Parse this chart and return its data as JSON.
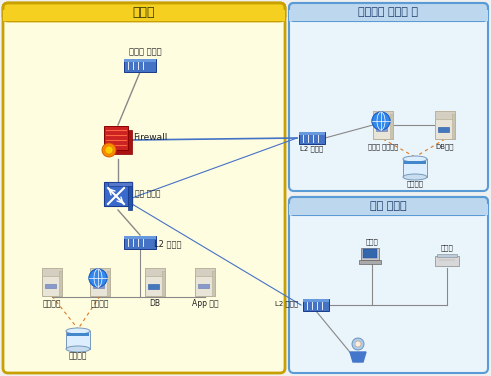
{
  "title_intranet": "내부망",
  "title_internet": "외부인용 인터넷 망",
  "title_internal": "내부 업무용",
  "labels": {
    "metro_switch": "메트로 스위치",
    "firewall": "Firewall",
    "border_switch": "벽로 스위치",
    "l2_switch": "L2 스위치",
    "archive": "아카이브",
    "content_mgmt": "유물관리",
    "db": "DB",
    "app_server": "App 서버",
    "storage_intranet": "스토리지",
    "l2_switch_internet": "L2 스위치",
    "public_homepage": "대민용 홈페이지",
    "db_server": "DB서버",
    "storage_internet": "스토리지",
    "l2_switch_internal": "L2 스위치",
    "notebook": "노트북",
    "scanner": "스캐너"
  },
  "colors": {
    "intranet_fill": "#fffde0",
    "intranet_border": "#c8a000",
    "intranet_header": "#f5d020",
    "internet_fill": "#eaf4fb",
    "internet_border": "#5b9bd5",
    "internet_header": "#bdd7ee",
    "internal_fill": "#eaf4fb",
    "internal_border": "#5b9bd5",
    "internal_header": "#bdd7ee",
    "switch_blue": "#4472c4",
    "switch_dark": "#1a3a8a",
    "line_gray": "#888888",
    "line_blue": "#4472c4",
    "dashed_orange": "#e07820",
    "server_body": "#e8e4d8",
    "server_top": "#d4cfc0",
    "server_border": "#b8b098",
    "storage_fill": "#ddeeff",
    "storage_border": "#7799bb",
    "firewall_red": "#cc2222",
    "text_dark": "#222222",
    "text_title": "#333300",
    "bg": "#f0f0f0"
  }
}
